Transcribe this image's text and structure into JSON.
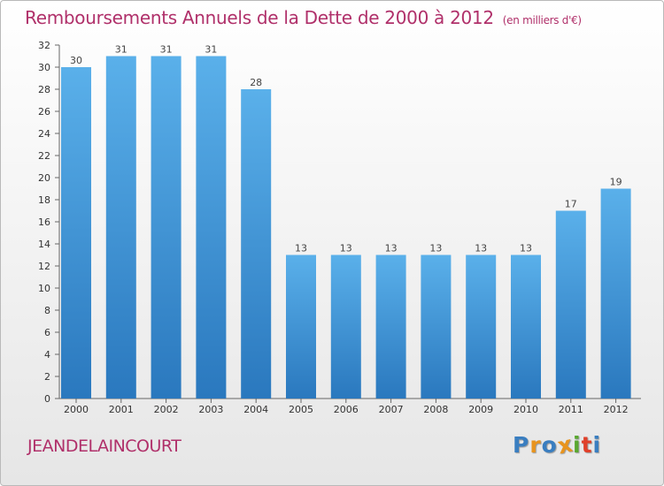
{
  "chart_data": {
    "type": "bar",
    "title": "Remboursements Annuels de la Dette de 2000 à 2012",
    "unit_note": "(en milliers d'€)",
    "categories": [
      "2000",
      "2001",
      "2002",
      "2003",
      "2004",
      "2005",
      "2006",
      "2007",
      "2008",
      "2009",
      "2010",
      "2011",
      "2012"
    ],
    "values": [
      30,
      31,
      31,
      31,
      28,
      13,
      13,
      13,
      13,
      13,
      13,
      17,
      19
    ],
    "ylim": [
      0,
      32
    ],
    "yticks": [
      0,
      2,
      4,
      6,
      8,
      10,
      12,
      14,
      16,
      18,
      20,
      22,
      24,
      26,
      28,
      30,
      32
    ],
    "xlabel": "",
    "ylabel": "",
    "bar_color": "#3a8fd4",
    "bar_color_light": "#5ab0ea",
    "bar_color_dark": "#2a78be"
  },
  "footer": {
    "commune": "JEANDELAINCOURT",
    "logo_letters": [
      "P",
      "r",
      "o",
      "x",
      "i",
      "t",
      "i"
    ],
    "logo_colors": [
      "#3a7ec0",
      "#e8941e",
      "#3a7ec0",
      "#e8941e",
      "#5aa830",
      "#e0402a",
      "#3a7ec0"
    ]
  },
  "colors": {
    "title": "#b0306a",
    "axis": "#555555"
  }
}
